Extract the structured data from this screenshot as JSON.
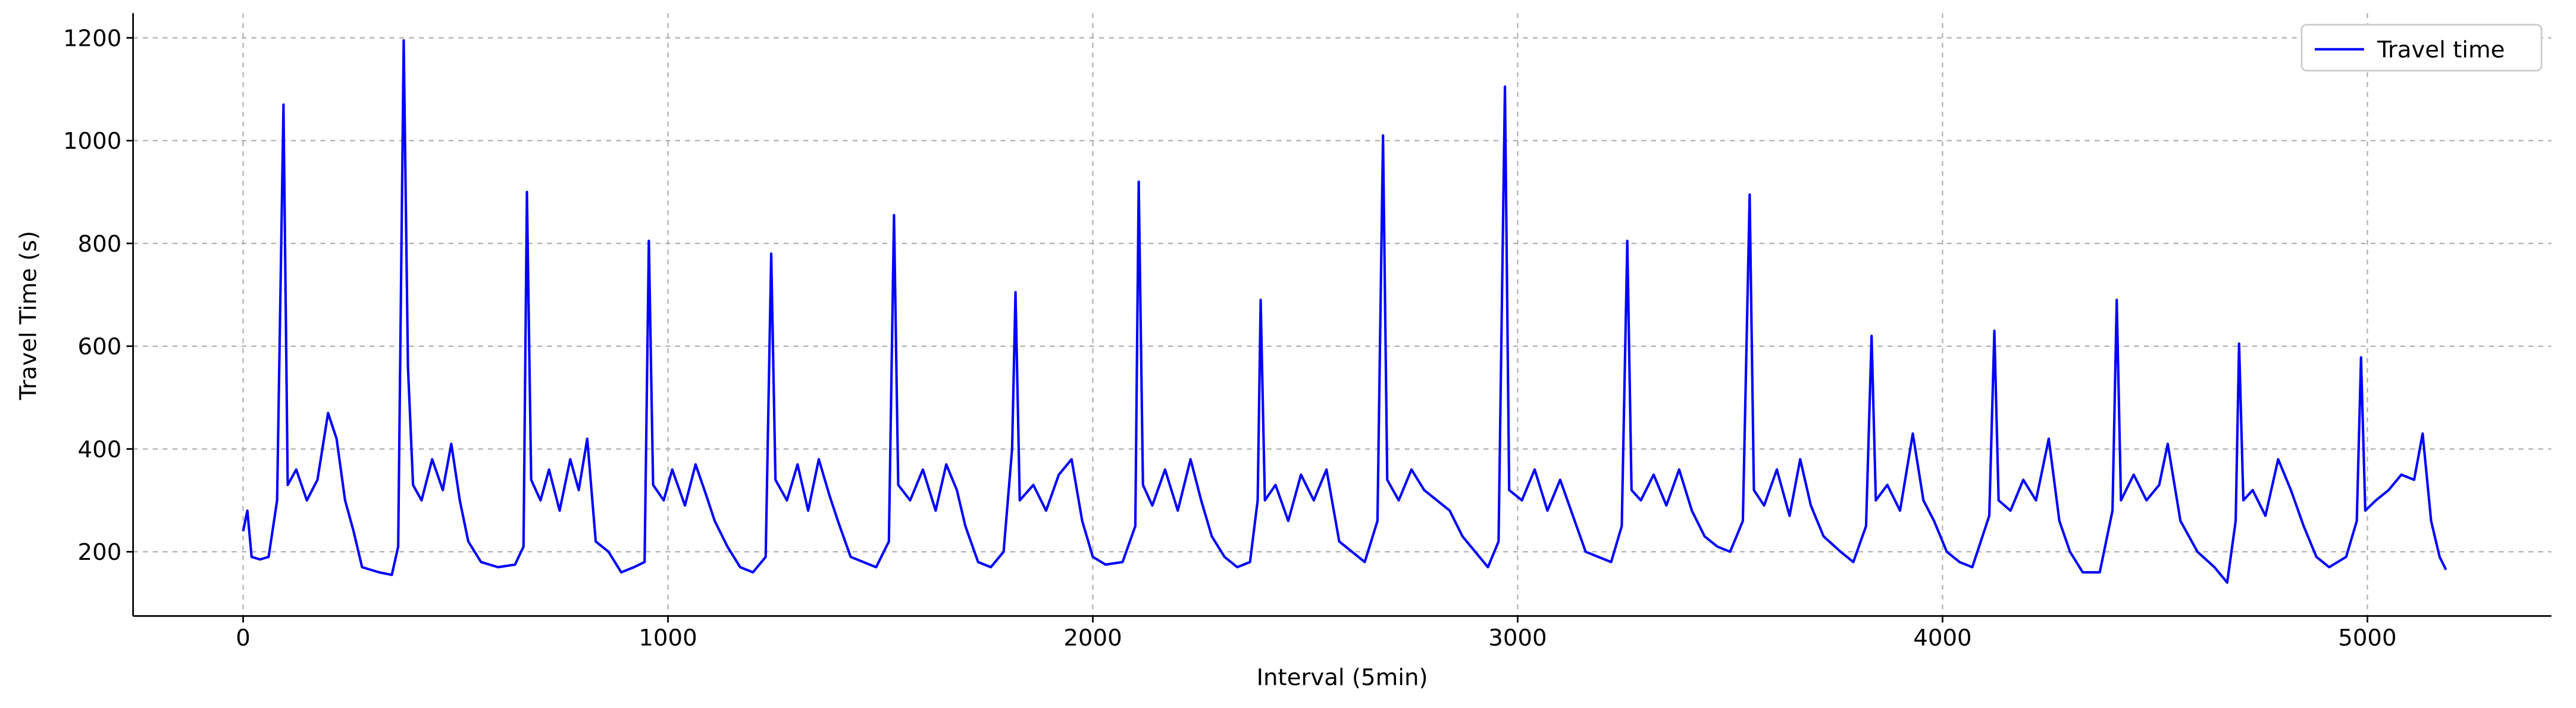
{
  "chart_data": {
    "type": "line",
    "xlabel": "Interval (5min)",
    "ylabel": "Travel Time (s)",
    "xlim": [
      -259,
      5433
    ],
    "ylim": [
      75,
      1248
    ],
    "xticks": [
      0,
      1000,
      2000,
      3000,
      4000,
      5000
    ],
    "yticks": [
      200,
      400,
      600,
      800,
      1000,
      1200
    ],
    "grid": true,
    "legend": "upper right",
    "x": [
      0,
      10,
      20,
      40,
      60,
      80,
      95,
      105,
      125,
      150,
      175,
      200,
      220,
      240,
      260,
      280,
      320,
      350,
      365,
      378,
      388,
      400,
      420,
      445,
      470,
      490,
      510,
      530,
      560,
      600,
      640,
      660,
      668,
      678,
      700,
      720,
      745,
      770,
      790,
      810,
      830,
      860,
      890,
      920,
      945,
      955,
      965,
      990,
      1010,
      1040,
      1065,
      1090,
      1110,
      1140,
      1170,
      1200,
      1230,
      1243,
      1253,
      1280,
      1305,
      1330,
      1355,
      1380,
      1400,
      1430,
      1460,
      1490,
      1520,
      1532,
      1542,
      1570,
      1600,
      1630,
      1655,
      1680,
      1700,
      1730,
      1760,
      1790,
      1810,
      1818,
      1828,
      1860,
      1890,
      1920,
      1950,
      1975,
      2000,
      2030,
      2070,
      2100,
      2108,
      2118,
      2140,
      2170,
      2200,
      2230,
      2255,
      2280,
      2310,
      2340,
      2370,
      2388,
      2395,
      2405,
      2430,
      2460,
      2490,
      2520,
      2550,
      2580,
      2610,
      2640,
      2670,
      2683,
      2693,
      2720,
      2750,
      2780,
      2810,
      2840,
      2870,
      2900,
      2930,
      2955,
      2970,
      2980,
      3010,
      3040,
      3070,
      3100,
      3130,
      3160,
      3190,
      3220,
      3245,
      3258,
      3268,
      3290,
      3320,
      3350,
      3380,
      3410,
      3440,
      3470,
      3500,
      3530,
      3546,
      3556,
      3580,
      3610,
      3640,
      3665,
      3690,
      3720,
      3760,
      3790,
      3820,
      3833,
      3843,
      3870,
      3900,
      3930,
      3955,
      3980,
      4010,
      4040,
      4070,
      4110,
      4122,
      4132,
      4160,
      4190,
      4220,
      4250,
      4275,
      4300,
      4330,
      4370,
      4400,
      4410,
      4420,
      4450,
      4480,
      4510,
      4530,
      4560,
      4600,
      4640,
      4670,
      4690,
      4698,
      4708,
      4730,
      4760,
      4790,
      4820,
      4850,
      4880,
      4910,
      4950,
      4975,
      4985,
      4995,
      5020,
      5050,
      5080,
      5110,
      5130,
      5150,
      5170,
      5185
    ],
    "series": [
      {
        "name": "Travel time",
        "color": "#0000ff",
        "values": [
          240,
          280,
          190,
          185,
          190,
          300,
          1070,
          330,
          360,
          300,
          340,
          470,
          420,
          300,
          240,
          170,
          160,
          155,
          210,
          1195,
          560,
          330,
          300,
          380,
          320,
          410,
          300,
          220,
          180,
          170,
          175,
          210,
          900,
          340,
          300,
          360,
          280,
          380,
          320,
          420,
          220,
          200,
          160,
          170,
          180,
          805,
          330,
          300,
          360,
          290,
          370,
          310,
          260,
          210,
          170,
          160,
          190,
          780,
          340,
          300,
          370,
          280,
          380,
          310,
          260,
          190,
          180,
          170,
          220,
          855,
          330,
          300,
          360,
          280,
          370,
          320,
          250,
          180,
          170,
          200,
          400,
          705,
          300,
          330,
          280,
          350,
          380,
          260,
          190,
          175,
          180,
          250,
          920,
          330,
          290,
          360,
          280,
          380,
          300,
          230,
          190,
          170,
          180,
          300,
          690,
          300,
          330,
          260,
          350,
          300,
          360,
          220,
          200,
          180,
          260,
          1010,
          340,
          300,
          360,
          320,
          300,
          280,
          230,
          200,
          170,
          220,
          1105,
          320,
          300,
          360,
          280,
          340,
          270,
          200,
          190,
          180,
          250,
          805,
          320,
          300,
          350,
          290,
          360,
          280,
          230,
          210,
          200,
          260,
          895,
          320,
          290,
          360,
          270,
          380,
          290,
          230,
          200,
          180,
          250,
          620,
          300,
          330,
          280,
          430,
          300,
          260,
          200,
          180,
          170,
          270,
          630,
          300,
          280,
          340,
          300,
          420,
          260,
          200,
          160,
          160,
          280,
          690,
          300,
          350,
          300,
          330,
          410,
          260,
          200,
          170,
          140,
          260,
          605,
          300,
          320,
          270,
          380,
          320,
          250,
          190,
          170,
          190,
          260,
          578,
          280,
          300,
          320,
          350,
          340,
          430,
          260,
          190,
          165
        ]
      }
    ]
  }
}
